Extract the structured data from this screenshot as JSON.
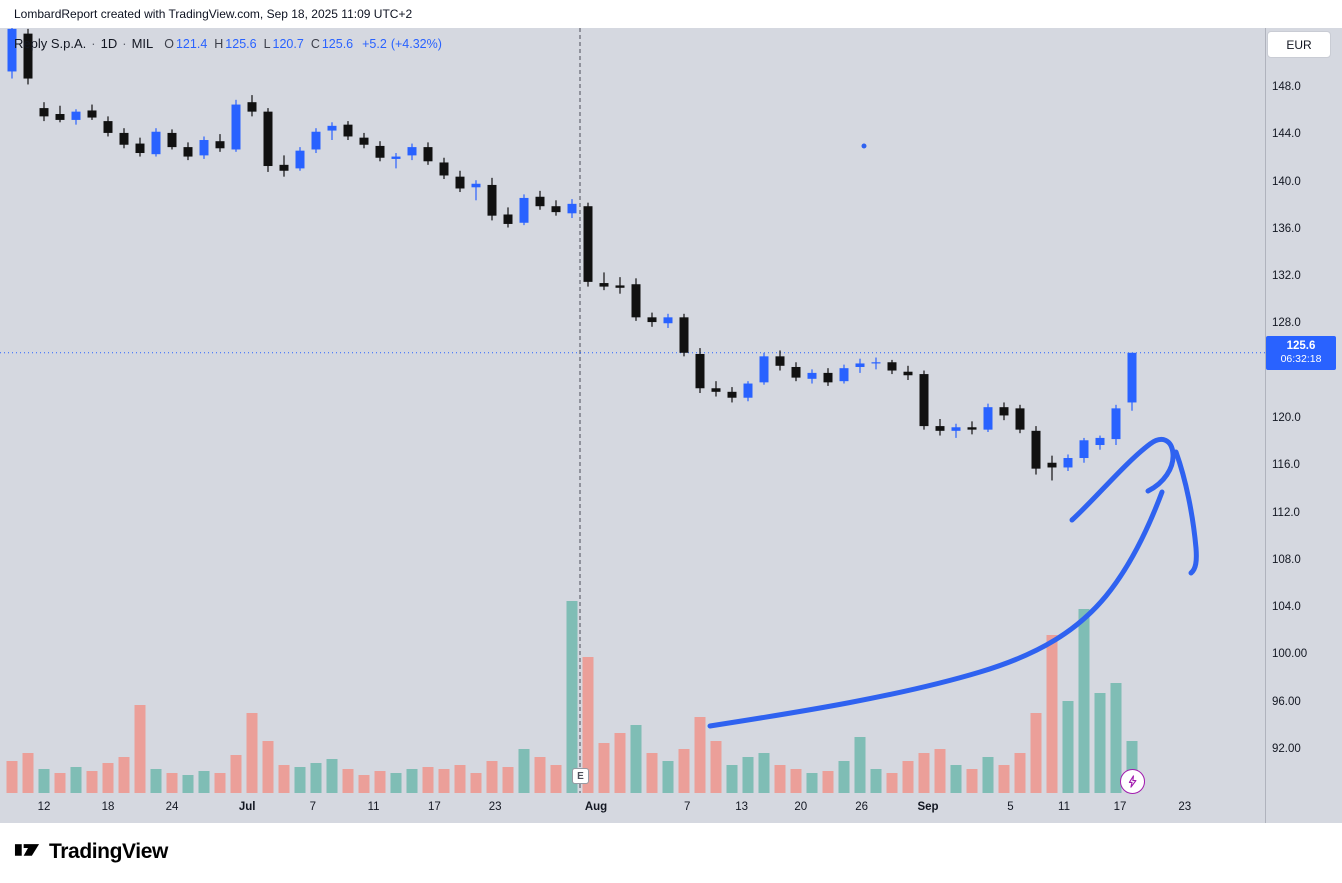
{
  "header": {
    "text": "LombardReport created with TradingView.com, Sep 18, 2025 11:09 UTC+2"
  },
  "legend": {
    "symbol": "Reply S.p.A.",
    "separator": "·",
    "interval": "1D",
    "exchange": "MIL",
    "ohlc": {
      "o_label": "O",
      "o": "121.4",
      "h_label": "H",
      "h": "125.6",
      "l_label": "L",
      "l": "120.7",
      "c_label": "C",
      "c": "125.6",
      "change": "+5.2",
      "change_pct": "(+4.32%)"
    }
  },
  "axis": {
    "currency": "EUR"
  },
  "price_tag": {
    "price": "125.6",
    "countdown": "06:32:18"
  },
  "earnings_marker": "E",
  "footer": {
    "brand": "TradingView"
  },
  "colors": {
    "up": "#2962FF",
    "down": "#111111",
    "vol_up": "#7fbdb5",
    "vol_down": "#eb9f99",
    "pane_bg": "#d5d8e0",
    "axis_text": "#131722",
    "price_line": "#2962FF",
    "tag_bg": "#2962FF",
    "drawing": "#2f62f0",
    "dashed_line": "#4a4d57",
    "flash": "#a21caf"
  },
  "chart_data": {
    "type": "candlestick",
    "title": "Reply S.p.A. · 1D · MIL",
    "currency": "EUR",
    "last_bar": {
      "open": 121.4,
      "high": 125.6,
      "low": 120.7,
      "close": 125.6,
      "change": 5.2,
      "change_pct": 4.32
    },
    "price_line": 125.6,
    "countdown": "06:32:18",
    "ylim": [
      91,
      154
    ],
    "legend_position": "top-left",
    "grid": false,
    "price_axis_labels": [
      {
        "p": 148,
        "text": "148.0"
      },
      {
        "p": 144,
        "text": "144.0"
      },
      {
        "p": 140,
        "text": "140.0"
      },
      {
        "p": 136,
        "text": "136.0"
      },
      {
        "p": 132,
        "text": "132.0"
      },
      {
        "p": 128,
        "text": "128.0"
      },
      {
        "p": 120,
        "text": "120.0"
      },
      {
        "p": 116,
        "text": "116.0"
      },
      {
        "p": 112,
        "text": "112.0"
      },
      {
        "p": 108,
        "text": "108.0"
      },
      {
        "p": 104,
        "text": "104.0"
      },
      {
        "p": 100,
        "text": "100.00"
      },
      {
        "p": 96,
        "text": "96.00"
      },
      {
        "p": 92,
        "text": "92.00"
      }
    ],
    "x_ticks": [
      {
        "i": 2,
        "label": "12"
      },
      {
        "i": 6,
        "label": "18"
      },
      {
        "i": 10,
        "label": "24"
      },
      {
        "i": 14.7,
        "label": "Jul"
      },
      {
        "i": 18.8,
        "label": "7"
      },
      {
        "i": 22.6,
        "label": "11"
      },
      {
        "i": 26.4,
        "label": "17"
      },
      {
        "i": 30.2,
        "label": "23"
      },
      {
        "i": 36.5,
        "label": "Aug"
      },
      {
        "i": 42.2,
        "label": "7"
      },
      {
        "i": 45.6,
        "label": "13"
      },
      {
        "i": 49.3,
        "label": "20"
      },
      {
        "i": 53.1,
        "label": "26"
      },
      {
        "i": 57.25,
        "label": "Sep"
      },
      {
        "i": 62.4,
        "label": "5"
      },
      {
        "i": 65.75,
        "label": "11"
      },
      {
        "i": 69.25,
        "label": "17"
      },
      {
        "i": 73.3,
        "label": "23"
      }
    ],
    "earnings_index": 35.5,
    "candle_columns": [
      "open",
      "high",
      "low",
      "close",
      "volume",
      "volume_color"
    ],
    "candles": [
      [
        149.4,
        153.6,
        148.8,
        153.0,
        16,
        "r"
      ],
      [
        152.6,
        153.0,
        148.3,
        148.8,
        20,
        "r"
      ],
      [
        146.3,
        146.8,
        145.2,
        145.6,
        12,
        "g"
      ],
      [
        145.8,
        146.5,
        145.1,
        145.3,
        10,
        "r"
      ],
      [
        145.3,
        146.2,
        144.9,
        146.0,
        13,
        "g"
      ],
      [
        146.1,
        146.6,
        145.3,
        145.5,
        11,
        "r"
      ],
      [
        145.2,
        145.6,
        143.9,
        144.2,
        15,
        "r"
      ],
      [
        144.2,
        144.6,
        142.9,
        143.2,
        18,
        "r"
      ],
      [
        143.3,
        143.8,
        142.2,
        142.5,
        44,
        "r"
      ],
      [
        142.4,
        144.6,
        142.2,
        144.3,
        12,
        "g"
      ],
      [
        144.2,
        144.5,
        142.8,
        143.0,
        10,
        "r"
      ],
      [
        143.0,
        143.4,
        141.9,
        142.2,
        9,
        "g"
      ],
      [
        142.3,
        143.9,
        142.0,
        143.6,
        11,
        "g"
      ],
      [
        143.5,
        144.1,
        142.6,
        142.9,
        10,
        "r"
      ],
      [
        142.8,
        147.0,
        142.6,
        146.6,
        19,
        "r"
      ],
      [
        146.8,
        147.4,
        145.6,
        146.0,
        40,
        "r"
      ],
      [
        146.0,
        146.3,
        140.9,
        141.4,
        26,
        "r"
      ],
      [
        141.5,
        142.3,
        140.5,
        141.0,
        14,
        "r"
      ],
      [
        141.2,
        143.0,
        141.0,
        142.7,
        13,
        "g"
      ],
      [
        142.8,
        144.6,
        142.5,
        144.3,
        15,
        "g"
      ],
      [
        144.4,
        145.1,
        143.6,
        144.8,
        17,
        "g"
      ],
      [
        144.9,
        145.2,
        143.6,
        143.9,
        12,
        "r"
      ],
      [
        143.8,
        144.2,
        142.9,
        143.2,
        9,
        "r"
      ],
      [
        143.1,
        143.5,
        141.8,
        142.1,
        11,
        "r"
      ],
      [
        142.0,
        142.5,
        141.2,
        142.2,
        10,
        "g"
      ],
      [
        142.3,
        143.3,
        141.9,
        143.0,
        12,
        "g"
      ],
      [
        143.0,
        143.4,
        141.5,
        141.8,
        13,
        "r"
      ],
      [
        141.7,
        142.1,
        140.3,
        140.6,
        12,
        "r"
      ],
      [
        140.5,
        141.0,
        139.2,
        139.5,
        14,
        "r"
      ],
      [
        139.6,
        140.2,
        138.5,
        139.9,
        10,
        "r"
      ],
      [
        139.8,
        140.4,
        136.8,
        137.2,
        16,
        "r"
      ],
      [
        137.3,
        137.9,
        136.2,
        136.5,
        13,
        "r"
      ],
      [
        136.6,
        139.0,
        136.4,
        138.7,
        22,
        "g"
      ],
      [
        138.8,
        139.3,
        137.7,
        138.0,
        18,
        "r"
      ],
      [
        138.0,
        138.5,
        137.2,
        137.5,
        14,
        "r"
      ],
      [
        137.4,
        138.6,
        137.0,
        138.2,
        96,
        "g"
      ],
      [
        138.0,
        138.3,
        131.2,
        131.6,
        68,
        "r"
      ],
      [
        131.5,
        132.4,
        130.9,
        131.2,
        25,
        "r"
      ],
      [
        131.3,
        132.0,
        130.6,
        131.1,
        30,
        "r"
      ],
      [
        131.4,
        131.9,
        128.3,
        128.6,
        34,
        "g"
      ],
      [
        128.6,
        129.0,
        127.8,
        128.2,
        20,
        "r"
      ],
      [
        128.1,
        128.9,
        127.7,
        128.6,
        16,
        "g"
      ],
      [
        128.6,
        128.9,
        125.3,
        125.6,
        22,
        "r"
      ],
      [
        125.5,
        126.0,
        122.2,
        122.6,
        38,
        "r"
      ],
      [
        122.6,
        123.2,
        121.9,
        122.3,
        26,
        "r"
      ],
      [
        122.3,
        122.7,
        121.4,
        121.8,
        14,
        "g"
      ],
      [
        121.8,
        123.2,
        121.5,
        123.0,
        18,
        "g"
      ],
      [
        123.1,
        125.6,
        122.9,
        125.3,
        20,
        "g"
      ],
      [
        125.3,
        125.8,
        124.1,
        124.5,
        14,
        "r"
      ],
      [
        124.4,
        124.8,
        123.2,
        123.5,
        12,
        "r"
      ],
      [
        123.4,
        124.2,
        123.0,
        123.9,
        10,
        "g"
      ],
      [
        123.9,
        124.3,
        122.8,
        123.1,
        11,
        "r"
      ],
      [
        123.2,
        124.6,
        123.0,
        124.3,
        16,
        "g"
      ],
      [
        124.4,
        125.1,
        123.9,
        124.7,
        28,
        "g"
      ],
      [
        124.7,
        125.2,
        124.2,
        124.8,
        12,
        "g"
      ],
      [
        124.8,
        125.0,
        123.8,
        124.1,
        10,
        "r"
      ],
      [
        124.0,
        124.5,
        123.3,
        123.7,
        16,
        "r"
      ],
      [
        123.8,
        124.1,
        119.1,
        119.4,
        20,
        "r"
      ],
      [
        119.4,
        120.0,
        118.6,
        119.0,
        22,
        "r"
      ],
      [
        119.0,
        119.6,
        118.4,
        119.3,
        14,
        "g"
      ],
      [
        119.3,
        119.8,
        118.7,
        119.1,
        12,
        "r"
      ],
      [
        119.1,
        121.3,
        118.9,
        121.0,
        18,
        "g"
      ],
      [
        121.0,
        121.4,
        119.9,
        120.3,
        14,
        "r"
      ],
      [
        120.9,
        121.2,
        118.8,
        119.1,
        20,
        "r"
      ],
      [
        119.0,
        119.4,
        115.3,
        115.8,
        40,
        "r"
      ],
      [
        116.3,
        116.9,
        114.8,
        115.9,
        79,
        "r"
      ],
      [
        115.9,
        117.0,
        115.6,
        116.7,
        46,
        "g"
      ],
      [
        116.7,
        118.4,
        116.3,
        118.2,
        92,
        "g"
      ],
      [
        117.8,
        118.6,
        117.4,
        118.4,
        50,
        "g"
      ],
      [
        118.3,
        121.2,
        117.8,
        120.9,
        55,
        "g"
      ],
      [
        121.4,
        125.6,
        120.7,
        125.6,
        26,
        "g"
      ]
    ],
    "drawing": {
      "stroke_paths": [
        "M 710 726 C 800 712 900 696 980 672 C 1040 654 1078 630 1106 596 C 1132 564 1150 524 1162 492",
        "M 1072 520 C 1096 498 1126 462 1150 444 C 1162 435 1172 440 1173 454 C 1174 468 1164 483 1148 491",
        "M 1176 452 C 1186 480 1193 515 1196 548 C 1197 561 1196 569 1191 573"
      ],
      "dot": {
        "x": 864,
        "y": 146,
        "r": 2.5
      }
    }
  }
}
